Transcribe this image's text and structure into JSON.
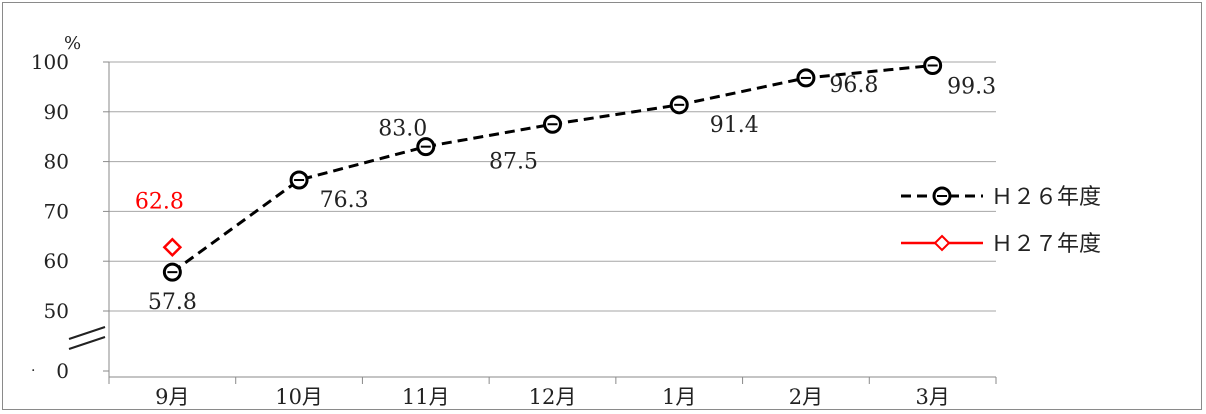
{
  "chart_data": {
    "type": "line",
    "title": "",
    "xlabel": "",
    "ylabel": "%",
    "categories": [
      "9月",
      "10月",
      "11月",
      "12月",
      "1月",
      "2月",
      "3月"
    ],
    "y_ticks": [
      "0",
      "50",
      "60",
      "70",
      "80",
      "90",
      "100"
    ],
    "ylim": [
      50,
      100
    ],
    "axis_break": true,
    "grid": true,
    "legend_position": "right",
    "series": [
      {
        "name": "Ｈ２６年度",
        "color": "#000000",
        "line_style": "dashed",
        "marker": "circle",
        "values": [
          57.8,
          76.3,
          83.0,
          87.5,
          91.4,
          96.8,
          99.3
        ],
        "labels": [
          "57.8",
          "76.3",
          "83.0",
          "87.5",
          "91.4",
          "96.8",
          "99.3"
        ]
      },
      {
        "name": "Ｈ２７年度",
        "color": "#ff0000",
        "line_style": "solid",
        "marker": "diamond",
        "values": [
          62.8,
          null,
          null,
          null,
          null,
          null,
          null
        ],
        "labels": [
          "62.8",
          null,
          null,
          null,
          null,
          null,
          null
        ]
      }
    ]
  }
}
